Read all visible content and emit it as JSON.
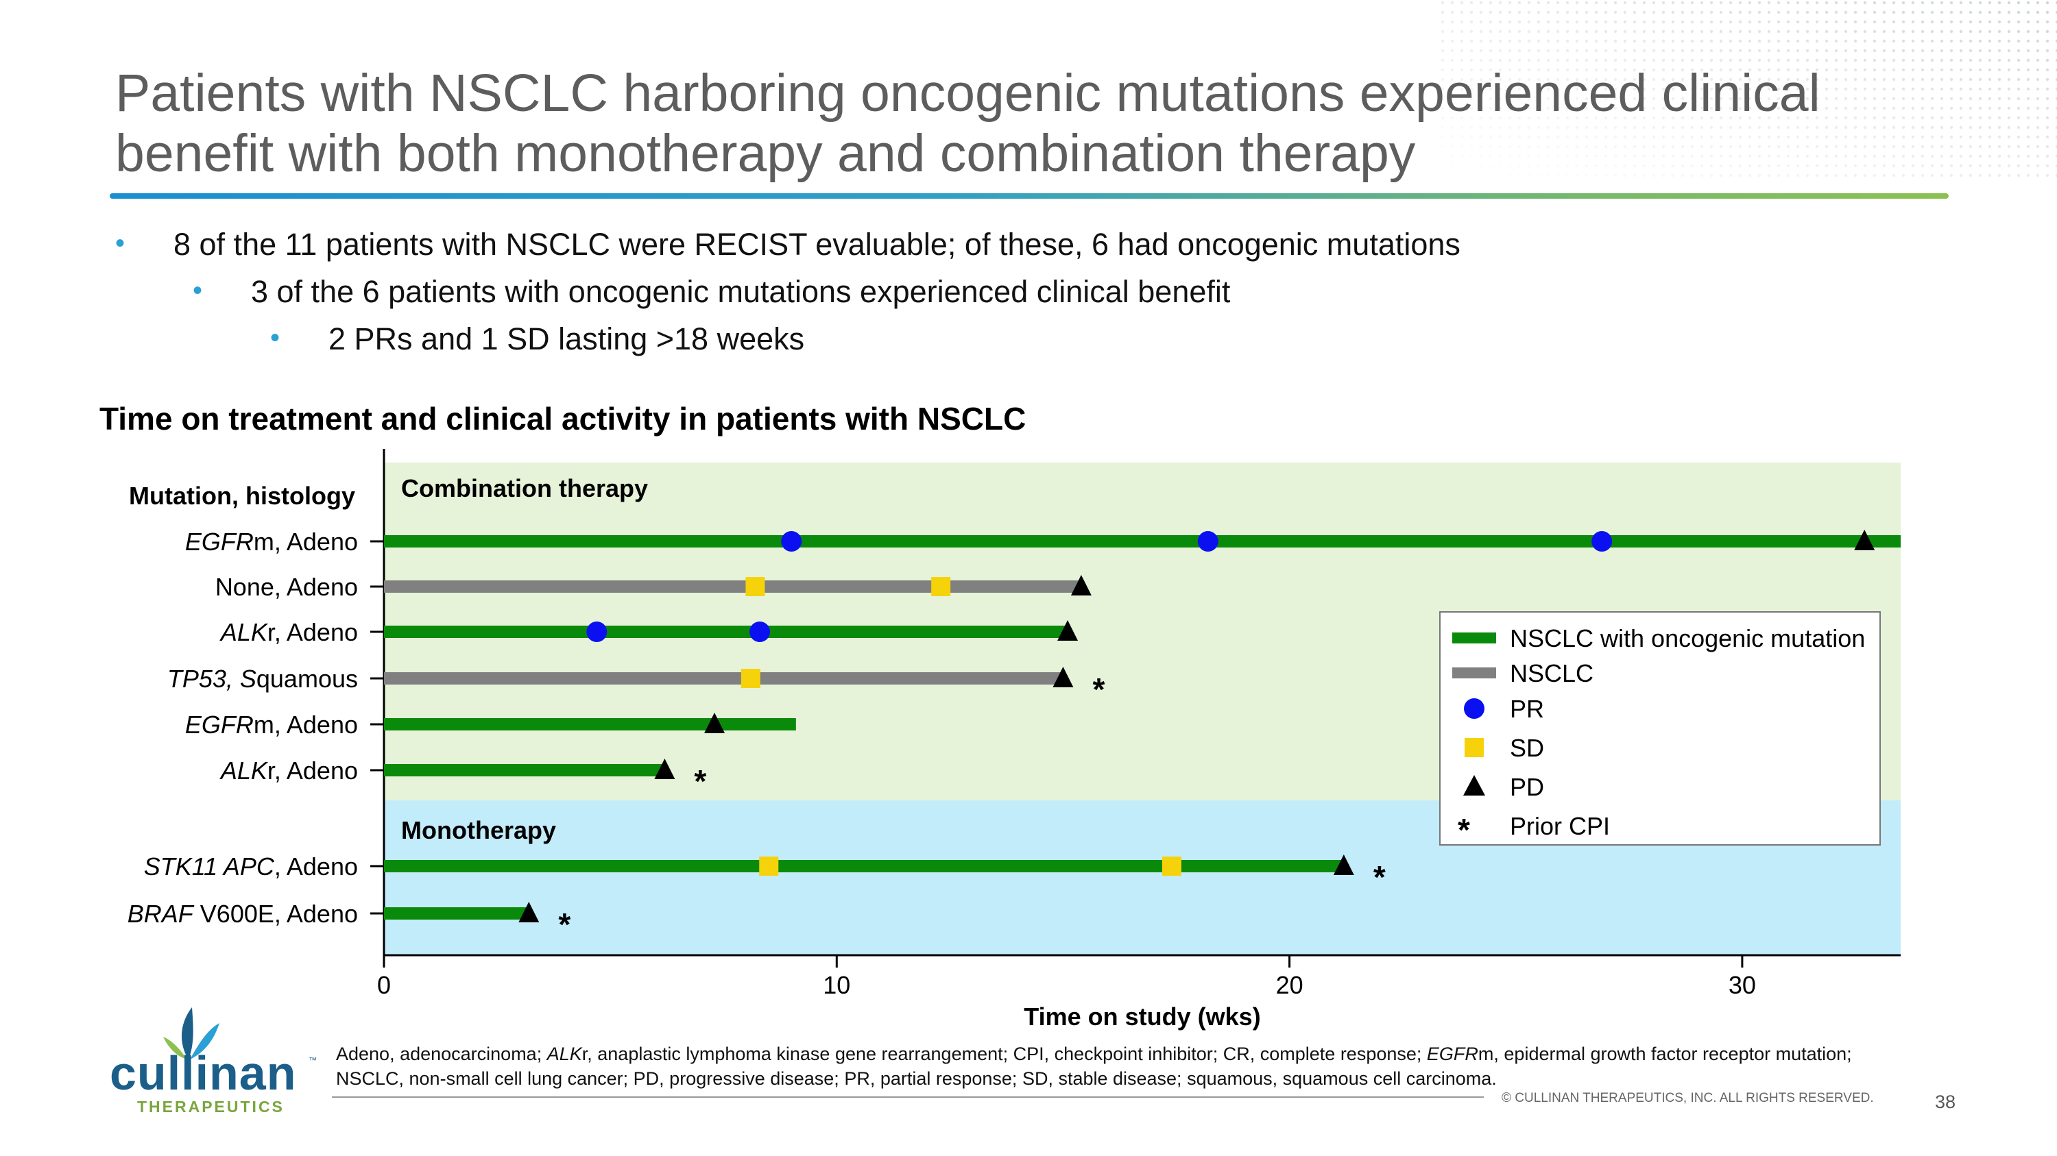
{
  "slide": {
    "title_line1": "Patients with NSCLC harboring oncogenic mutations experienced clinical",
    "title_line2": "benefit with both monotherapy and combination therapy",
    "bullets": [
      "8 of the 11 patients with NSCLC were RECIST evaluable; of these, 6 had oncogenic mutations",
      "3 of the 6 patients with oncogenic mutations experienced clinical benefit",
      "2 PRs and 1 SD lasting >18 weeks"
    ],
    "bullet_symbol": "•",
    "chart_heading": "Time on treatment and clinical activity in patients with NSCLC",
    "footnote_parts": [
      {
        "text": "Adeno, adenocarcinoma; ",
        "italic": false
      },
      {
        "text": "ALK",
        "italic": true
      },
      {
        "text": "r, anaplastic lymphoma kinase gene rearrangement; CPI, checkpoint inhibitor; CR, complete response; ",
        "italic": false
      },
      {
        "text": "EGFR",
        "italic": true
      },
      {
        "text": "m, epidermal growth factor receptor mutation; NSCLC, non-small cell lung cancer; PD, progressive disease; PR, partial response; SD, stable disease; squamous, squamous cell carcinoma.",
        "italic": false
      }
    ],
    "copyright": "© CULLINAN THERAPEUTICS, INC. ALL RIGHTS RESERVED.",
    "page_number": "38",
    "logo_word": "cullinan",
    "logo_tm": "™",
    "logo_sub": "THERAPEUTICS"
  },
  "chart_data": {
    "type": "swimmer",
    "xlabel": "Time on study (wks)",
    "ylabel": "Mutation, histology",
    "xlim": [
      0,
      33.5
    ],
    "xticks": [
      0,
      10,
      20,
      30
    ],
    "groups": [
      {
        "name": "Combination therapy",
        "color": "#e6f3d9",
        "rows": [
          0,
          5
        ]
      },
      {
        "name": "Monotherapy",
        "color": "#c3ecfb",
        "rows": [
          6,
          7
        ]
      }
    ],
    "series_colors": {
      "mutation": "#0a8a0a",
      "none": "#808080",
      "PR": "#0a10f0",
      "SD": "#f5d20a",
      "PD": "#000000"
    },
    "patients": [
      {
        "label": [
          {
            "t": "EGFR",
            "i": true
          },
          {
            "t": "m, Adeno",
            "i": false
          }
        ],
        "type": "mutation",
        "duration": 33.5,
        "pr": [
          9.0,
          18.2,
          26.9
        ],
        "sd": [],
        "pd": 32.7,
        "prior_cpi": false
      },
      {
        "label": [
          {
            "t": "None, Adeno",
            "i": false
          }
        ],
        "type": "none",
        "duration": 15.4,
        "pr": [],
        "sd": [
          8.2,
          12.3
        ],
        "pd": 15.4,
        "prior_cpi": false
      },
      {
        "label": [
          {
            "t": "ALK",
            "i": true
          },
          {
            "t": "r, Adeno",
            "i": false
          }
        ],
        "type": "mutation",
        "duration": 15.1,
        "pr": [
          4.7,
          8.3
        ],
        "sd": [],
        "pd": 15.1,
        "prior_cpi": false
      },
      {
        "label": [
          {
            "t": "TP53, S",
            "i": true
          },
          {
            "t": "quamous",
            "i": false
          }
        ],
        "type": "none",
        "duration": 15.0,
        "pr": [],
        "sd": [
          8.1
        ],
        "pd": 15.0,
        "prior_cpi": true
      },
      {
        "label": [
          {
            "t": "EGFR",
            "i": true
          },
          {
            "t": "m, Adeno",
            "i": false
          }
        ],
        "type": "mutation",
        "duration": 9.1,
        "pr": [],
        "sd": [],
        "pd": 7.3,
        "prior_cpi": false
      },
      {
        "label": [
          {
            "t": "ALK",
            "i": true
          },
          {
            "t": "r, Adeno",
            "i": false
          }
        ],
        "type": "mutation",
        "duration": 6.2,
        "pr": [],
        "sd": [],
        "pd": 6.2,
        "prior_cpi": true
      },
      {
        "label": [
          {
            "t": "STK11 APC",
            "i": true
          },
          {
            "t": ", Adeno",
            "i": false
          }
        ],
        "type": "mutation",
        "duration": 21.2,
        "pr": [],
        "sd": [
          8.5,
          17.4
        ],
        "pd": 21.2,
        "prior_cpi": true
      },
      {
        "label": [
          {
            "t": "BRAF",
            "i": true
          },
          {
            "t": " V600E, Adeno",
            "i": false
          }
        ],
        "type": "mutation",
        "duration": 3.2,
        "pr": [],
        "sd": [],
        "pd": 3.2,
        "prior_cpi": true
      }
    ],
    "legend": {
      "position": "right",
      "items": [
        {
          "key": "mutation",
          "shape": "bar",
          "label": "NSCLC with oncogenic mutation"
        },
        {
          "key": "none",
          "shape": "bar",
          "label": "NSCLC"
        },
        {
          "key": "PR",
          "shape": "circle",
          "label": "PR"
        },
        {
          "key": "SD",
          "shape": "square",
          "label": "SD"
        },
        {
          "key": "PD",
          "shape": "triangle",
          "label": "PD"
        },
        {
          "key": "CPI",
          "shape": "asterisk",
          "label": "Prior CPI"
        }
      ]
    },
    "prior_cpi_symbol": "*"
  }
}
